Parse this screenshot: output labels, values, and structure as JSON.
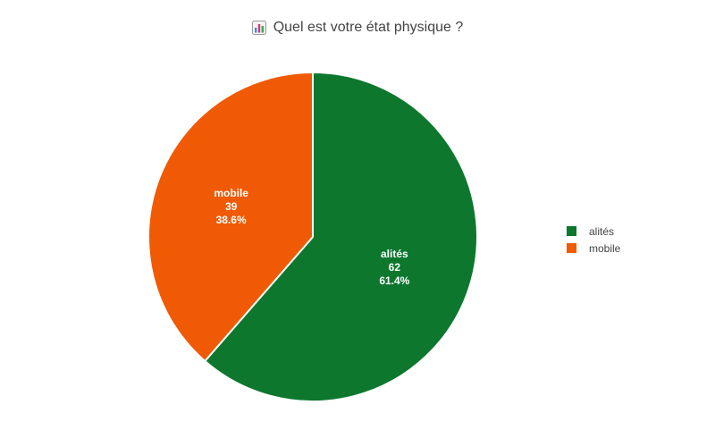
{
  "title": {
    "text": "Quel est votre état physique ?",
    "icon": "bar-chart-icon"
  },
  "chart_data": {
    "type": "pie",
    "title": "Quel est votre état physique ?",
    "slices": [
      {
        "label": "alités",
        "value": 62,
        "percent": "61.4%",
        "color": "#0c772d"
      },
      {
        "label": "mobile",
        "value": 39,
        "percent": "38.6%",
        "color": "#f05a05"
      }
    ],
    "legend_position": "right",
    "start": "top",
    "direction": "clockwise"
  },
  "legend": {
    "items": [
      {
        "label": "alités",
        "color": "#0c772d"
      },
      {
        "label": "mobile",
        "color": "#f05a05"
      }
    ]
  }
}
